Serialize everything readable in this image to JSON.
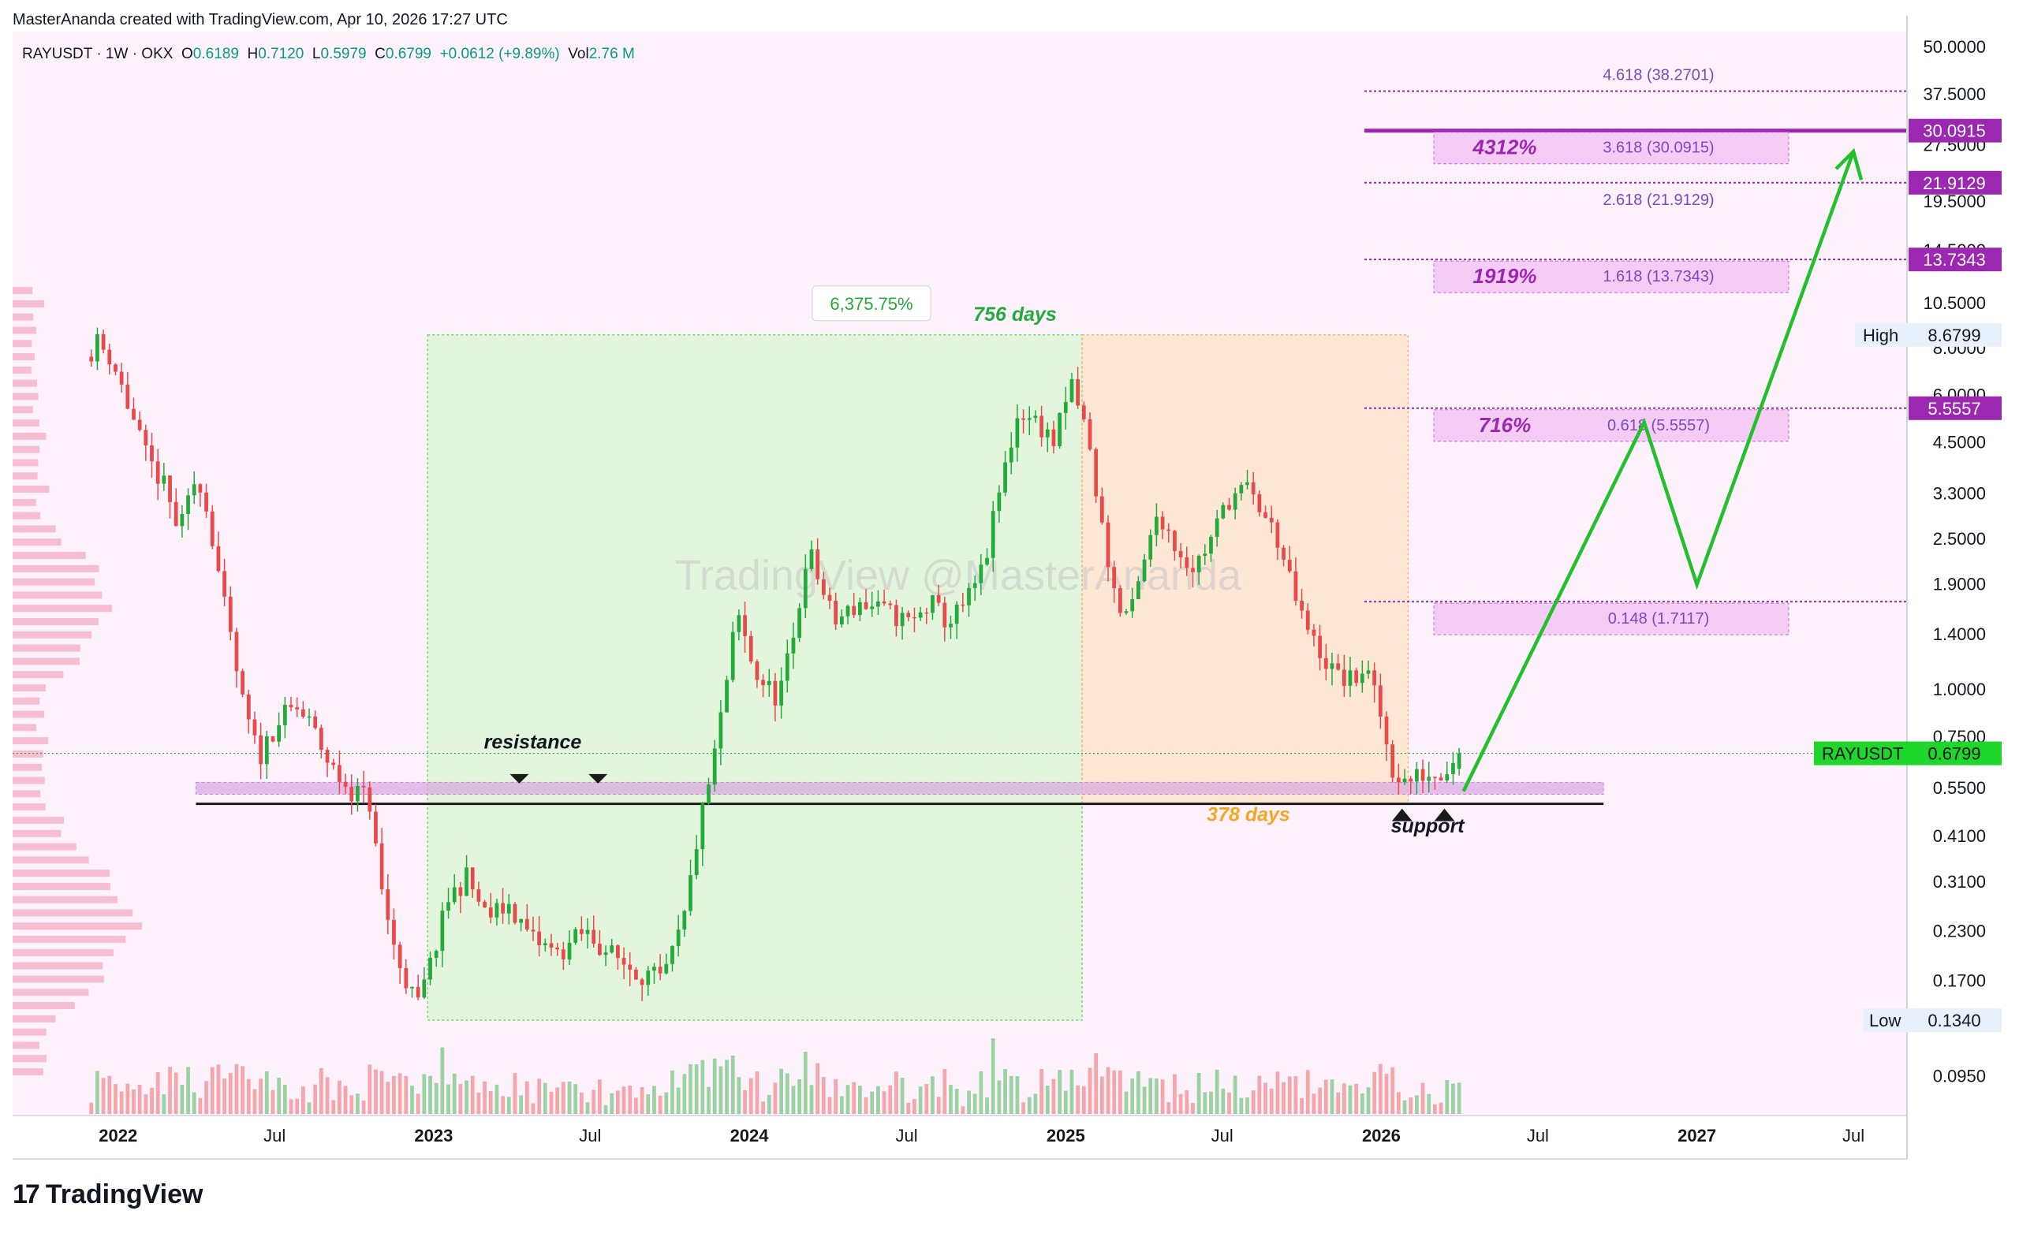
{
  "header": {
    "caption": "MasterAnanda created with TradingView.com, Apr 10, 2026 17:27 UTC"
  },
  "legend": {
    "symbol": "RAYUSDT · 1W · OKX",
    "o_label": "O",
    "o": "0.6189",
    "h_label": "H",
    "h": "0.7120",
    "l_label": "L",
    "l": "0.5979",
    "c_label": "C",
    "c": "0.6799",
    "change": "+0.0612 (+9.89%)",
    "vol_label": "Vol",
    "vol": "2.76 M"
  },
  "watermark": "TradingView @MasterAnanda",
  "footer": {
    "brand": "TradingView",
    "logo_glyph": "17"
  },
  "colors": {
    "up": "#22ab3a",
    "down": "#e84a4a",
    "purple": "#9c27b0",
    "green_zone": "#d9f7d3",
    "orange_zone": "#fde3c8",
    "support_band": "#d9a6e3",
    "arrow": "#22c02c"
  },
  "chart_data": {
    "type": "candlestick",
    "symbol": "RAYUSDT",
    "interval": "1W",
    "exchange": "OKX",
    "y_scale": "log",
    "ylim": [
      0.075,
      55
    ],
    "y_ticks": [
      "50.0000",
      "37.5000",
      "27.5000",
      "19.5000",
      "14.5000",
      "10.5000",
      "8.0000",
      "6.0000",
      "4.5000",
      "3.3000",
      "2.5000",
      "1.9000",
      "1.4000",
      "1.0000",
      "0.7500",
      "0.5500",
      "0.4100",
      "0.3100",
      "0.2300",
      "0.1700",
      "0.1340",
      "0.0950"
    ],
    "x_range": [
      "2021-09-01",
      "2027-09-01"
    ],
    "x_ticks": [
      {
        "label": "2022",
        "date": "2022-01-01",
        "bold": true
      },
      {
        "label": "Jul",
        "date": "2022-07-01",
        "bold": false
      },
      {
        "label": "2023",
        "date": "2023-01-01",
        "bold": true
      },
      {
        "label": "Jul",
        "date": "2023-07-01",
        "bold": false
      },
      {
        "label": "2024",
        "date": "2024-01-01",
        "bold": true
      },
      {
        "label": "Jul",
        "date": "2024-07-01",
        "bold": false
      },
      {
        "label": "2025",
        "date": "2025-01-01",
        "bold": true
      },
      {
        "label": "Jul",
        "date": "2025-07-01",
        "bold": false
      },
      {
        "label": "2026",
        "date": "2026-01-01",
        "bold": true
      },
      {
        "label": "Jul",
        "date": "2026-07-01",
        "bold": false
      },
      {
        "label": "2027",
        "date": "2027-01-01",
        "bold": true
      },
      {
        "label": "Jul",
        "date": "2027-07-01",
        "bold": false
      }
    ],
    "price_path": [
      [
        "2021-12-01",
        7.6
      ],
      [
        "2021-12-15",
        8.3
      ],
      [
        "2022-01-01",
        7.5
      ],
      [
        "2022-01-20",
        5.6
      ],
      [
        "2022-02-10",
        4.1
      ],
      [
        "2022-03-01",
        3.5
      ],
      [
        "2022-03-20",
        2.6
      ],
      [
        "2022-04-10",
        3.8
      ],
      [
        "2022-04-25",
        2.7
      ],
      [
        "2022-05-12",
        1.6
      ],
      [
        "2022-06-01",
        0.92
      ],
      [
        "2022-06-20",
        0.66
      ],
      [
        "2022-07-10",
        0.82
      ],
      [
        "2022-08-01",
        0.9
      ],
      [
        "2022-08-20",
        0.8
      ],
      [
        "2022-09-10",
        0.63
      ],
      [
        "2022-10-01",
        0.55
      ],
      [
        "2022-10-25",
        0.52
      ],
      [
        "2022-11-08",
        0.3
      ],
      [
        "2022-11-25",
        0.2
      ],
      [
        "2022-12-20",
        0.145
      ],
      [
        "2023-01-05",
        0.19
      ],
      [
        "2023-01-25",
        0.28
      ],
      [
        "2023-02-15",
        0.32
      ],
      [
        "2023-03-10",
        0.25
      ],
      [
        "2023-04-05",
        0.27
      ],
      [
        "2023-05-01",
        0.22
      ],
      [
        "2023-06-01",
        0.2
      ],
      [
        "2023-07-01",
        0.23
      ],
      [
        "2023-08-01",
        0.2
      ],
      [
        "2023-09-01",
        0.18
      ],
      [
        "2023-10-01",
        0.17
      ],
      [
        "2023-10-25",
        0.25
      ],
      [
        "2023-11-10",
        0.42
      ],
      [
        "2023-11-25",
        0.6
      ],
      [
        "2023-12-10",
        0.95
      ],
      [
        "2023-12-25",
        1.6
      ],
      [
        "2024-01-15",
        1.1
      ],
      [
        "2024-02-10",
        0.95
      ],
      [
        "2024-03-01",
        1.4
      ],
      [
        "2024-03-15",
        2.4
      ],
      [
        "2024-04-15",
        1.5
      ],
      [
        "2024-05-15",
        1.7
      ],
      [
        "2024-06-15",
        1.6
      ],
      [
        "2024-07-15",
        1.5
      ],
      [
        "2024-08-05",
        1.7
      ],
      [
        "2024-08-25",
        1.5
      ],
      [
        "2024-09-15",
        1.7
      ],
      [
        "2024-10-05",
        2.1
      ],
      [
        "2024-10-25",
        3.5
      ],
      [
        "2024-11-15",
        5.5
      ],
      [
        "2024-12-10",
        5.0
      ],
      [
        "2024-12-25",
        4.5
      ],
      [
        "2025-01-15",
        6.4
      ],
      [
        "2025-02-01",
        4.8
      ],
      [
        "2025-02-20",
        2.6
      ],
      [
        "2025-03-10",
        1.6
      ],
      [
        "2025-03-25",
        1.6
      ],
      [
        "2025-04-10",
        2.2
      ],
      [
        "2025-04-25",
        3.0
      ],
      [
        "2025-05-15",
        2.4
      ],
      [
        "2025-06-05",
        2.1
      ],
      [
        "2025-06-25",
        2.5
      ],
      [
        "2025-07-15",
        3.2
      ],
      [
        "2025-08-05",
        3.4
      ],
      [
        "2025-08-25",
        2.9
      ],
      [
        "2025-09-10",
        2.5
      ],
      [
        "2025-09-25",
        1.9
      ],
      [
        "2025-10-10",
        1.5
      ],
      [
        "2025-10-25",
        1.3
      ],
      [
        "2025-11-15",
        1.1
      ],
      [
        "2025-12-05",
        1.05
      ],
      [
        "2025-12-20",
        1.15
      ],
      [
        "2026-01-05",
        0.9
      ],
      [
        "2026-01-20",
        0.62
      ],
      [
        "2026-02-05",
        0.57
      ],
      [
        "2026-02-25",
        0.6
      ],
      [
        "2026-03-15",
        0.6
      ],
      [
        "2026-04-06",
        0.6799
      ]
    ],
    "last_bar": {
      "open": 0.6189,
      "high": 0.712,
      "low": 0.5979,
      "close": 0.6799
    },
    "current_price": {
      "label": "RAYUSDT",
      "value": "0.6799"
    },
    "high_marker": {
      "label": "High",
      "value": "8.6799"
    },
    "low_marker": {
      "label": "Low",
      "value": "0.1340"
    },
    "fib_levels": [
      {
        "ratio_label": "4.618 (38.2701)",
        "value": 38.2701,
        "box": false,
        "percent": "",
        "price_tag": ""
      },
      {
        "ratio_label": "3.618 (30.0915)",
        "value": 30.0915,
        "box": true,
        "percent": "4312%",
        "price_tag": "30.0915"
      },
      {
        "ratio_label": "2.618 (21.9129)",
        "value": 21.9129,
        "box": false,
        "percent": "",
        "price_tag": "21.9129"
      },
      {
        "ratio_label": "1.618 (13.7343)",
        "value": 13.7343,
        "box": true,
        "percent": "1919%",
        "price_tag": "13.7343"
      },
      {
        "ratio_label": "0.618 (5.5557)",
        "value": 5.5557,
        "box": true,
        "percent": "716%",
        "price_tag": "5.5557"
      },
      {
        "ratio_label": "0.148 (1.7117)",
        "value": 1.7117,
        "box": true,
        "percent": "",
        "price_tag": ""
      }
    ],
    "support_band": {
      "from": 0.53,
      "to": 0.57,
      "line": 0.5,
      "start": "2022-04-01",
      "end": "2026-09-15"
    },
    "ranges": [
      {
        "label": "756 days",
        "change": "6,375.75%",
        "start": "2022-12-25",
        "end": "2025-01-20",
        "low": 0.134,
        "high": 8.6799,
        "color": "green"
      },
      {
        "label": "378 days",
        "start": "2025-01-20",
        "end": "2026-02-01",
        "low": 0.5,
        "high": 8.6799,
        "color": "orange"
      }
    ],
    "annotations": [
      {
        "text": "resistance",
        "date": "2023-05-01",
        "value": 0.7
      },
      {
        "text": "support",
        "date": "2026-03-01",
        "value": 0.42
      }
    ],
    "resistance_markers": [
      {
        "date": "2023-04-10"
      },
      {
        "date": "2023-07-10"
      }
    ],
    "support_markers": [
      {
        "date": "2026-01-25"
      },
      {
        "date": "2026-03-15"
      }
    ],
    "projection_path": [
      [
        "2026-04-06",
        0.54
      ],
      [
        "2026-11-01",
        5.1
      ],
      [
        "2027-01-01",
        1.9
      ],
      [
        "2027-07-01",
        26.5
      ]
    ]
  }
}
